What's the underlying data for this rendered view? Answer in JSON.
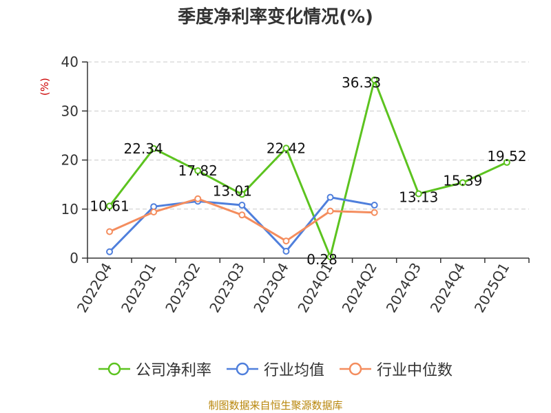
{
  "chart_data": {
    "type": "line",
    "title": "季度净利率变化情况(%)",
    "ylabel": "(%)",
    "xlabel": "",
    "ylim": [
      0,
      40
    ],
    "yticks": [
      0,
      10,
      20,
      30,
      40
    ],
    "grid": true,
    "legend_position": "bottom",
    "categories": [
      "2022Q4",
      "2023Q1",
      "2023Q2",
      "2023Q3",
      "2023Q4",
      "2024Q1",
      "2024Q2",
      "2024Q3",
      "2024Q4",
      "2025Q1"
    ],
    "series": [
      {
        "name": "公司净利率",
        "color": "#5cc31f",
        "values": [
          10.61,
          22.34,
          17.82,
          13.01,
          22.42,
          0.28,
          36.33,
          13.13,
          15.39,
          19.52
        ],
        "labels": [
          "10.61",
          "22.34",
          "17.82",
          "13.01",
          "22.42",
          "0.28",
          "36.33",
          "13.13",
          "15.39",
          "19.52"
        ]
      },
      {
        "name": "行业均值",
        "color": "#4f7fdc",
        "values": [
          1.3,
          10.5,
          11.6,
          10.8,
          1.4,
          12.4,
          10.8,
          null,
          null,
          null
        ]
      },
      {
        "name": "行业中位数",
        "color": "#f48d5e",
        "values": [
          5.4,
          9.4,
          12.1,
          8.8,
          3.5,
          9.6,
          9.3,
          null,
          null,
          null
        ]
      }
    ]
  },
  "source_note": "制图数据来自恒生聚源数据库"
}
